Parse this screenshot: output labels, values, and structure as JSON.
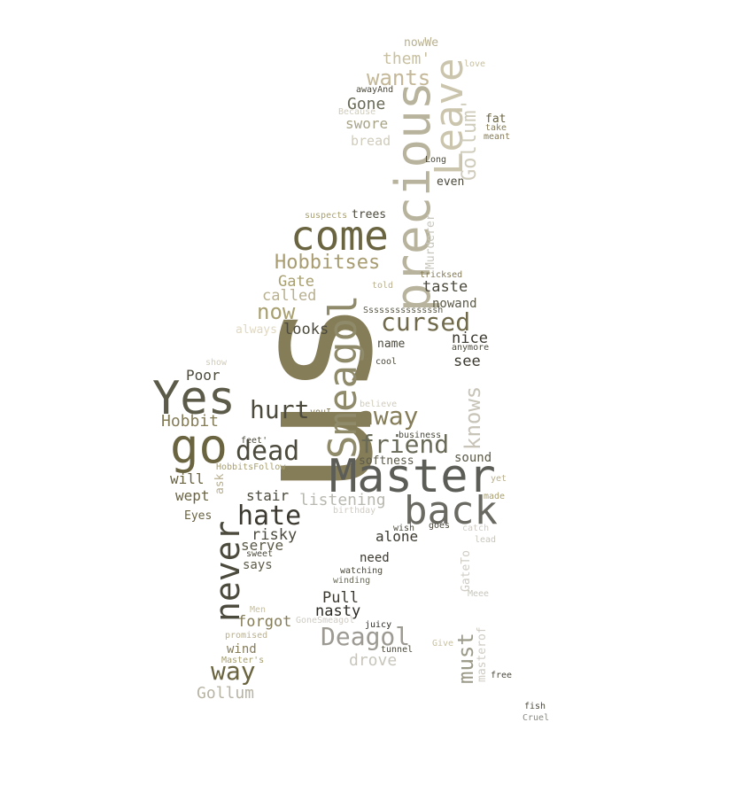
{
  "words": [
    {
      "text": "us",
      "color": "#857c58"
    },
    {
      "text": "precious",
      "color": "#b8b39c"
    },
    {
      "text": "Leave",
      "color": "#cbc5ad"
    },
    {
      "text": "Master",
      "color": "#5c5d57"
    },
    {
      "text": "Smeagol",
      "color": "#8f8a6a"
    },
    {
      "text": "back",
      "color": "#6a6a62"
    },
    {
      "text": "come",
      "color": "#6a6440"
    },
    {
      "text": "Yes",
      "color": "#5c5a48"
    },
    {
      "text": "go",
      "color": "#6a6440"
    },
    {
      "text": "never",
      "color": "#4c4a3c"
    },
    {
      "text": "Deagol",
      "color": "#9c9a92"
    },
    {
      "text": "Hobbitses",
      "color": "#a89c70"
    },
    {
      "text": "cursed",
      "color": "#706a4a"
    },
    {
      "text": "friend",
      "color": "#6a6a58"
    },
    {
      "text": "away",
      "color": "#857c58"
    },
    {
      "text": "dead",
      "color": "#4c4a3c"
    },
    {
      "text": "hate",
      "color": "#3c3a30"
    },
    {
      "text": "hurt",
      "color": "#4c4a3c"
    },
    {
      "text": "way",
      "color": "#6a6440"
    },
    {
      "text": "knows",
      "color": "#c8c4b8"
    },
    {
      "text": "must",
      "color": "#9c9a88"
    },
    {
      "text": "Gollum'",
      "color": "#d0ccbc"
    },
    {
      "text": "wants",
      "color": "#c4b898"
    },
    {
      "text": "now",
      "color": "#a8a070"
    },
    {
      "text": "Gollum",
      "color": "#b8b4a4"
    },
    {
      "text": "drove",
      "color": "#c8c6bc"
    },
    {
      "text": "listening",
      "color": "#b8b8b0"
    },
    {
      "text": "Hobbit",
      "color": "#857c58"
    },
    {
      "text": "them'",
      "color": "#c8c0a0"
    },
    {
      "text": "Gone",
      "color": "#6a6a58"
    },
    {
      "text": "swore",
      "color": "#a8a488"
    },
    {
      "text": "bread",
      "color": "#d0ccbc"
    },
    {
      "text": "Gate",
      "color": "#a8a070"
    },
    {
      "text": "called",
      "color": "#b8b090"
    },
    {
      "text": "taste",
      "color": "#4c4a3c"
    },
    {
      "text": "looks",
      "color": "#4c4a3c"
    },
    {
      "text": "nice",
      "color": "#3c3a30"
    },
    {
      "text": "see",
      "color": "#3c3a30"
    },
    {
      "text": "Poor",
      "color": "#4c4a3c"
    },
    {
      "text": "will",
      "color": "#6a6440"
    },
    {
      "text": "wept",
      "color": "#6a6440"
    },
    {
      "text": "stair",
      "color": "#4c4a3c"
    },
    {
      "text": "risky",
      "color": "#4c4a3c"
    },
    {
      "text": "serve",
      "color": "#5c5a48"
    },
    {
      "text": "alone",
      "color": "#3c3a30"
    },
    {
      "text": "sound",
      "color": "#5c5a48"
    },
    {
      "text": "softness",
      "color": "#5c5a48"
    },
    {
      "text": "nowand",
      "color": "#5c5a48"
    },
    {
      "text": "name",
      "color": "#4c4a3c"
    },
    {
      "text": "forgot",
      "color": "#857c58"
    },
    {
      "text": "nasty",
      "color": "#2c2a24"
    },
    {
      "text": "Pull",
      "color": "#3c3a30"
    },
    {
      "text": "wind",
      "color": "#857c58"
    },
    {
      "text": "need",
      "color": "#3c3a30"
    },
    {
      "text": "says",
      "color": "#5c5a48"
    },
    {
      "text": "Eyes",
      "color": "#6a6440"
    },
    {
      "text": "trees",
      "color": "#4c4a3c"
    },
    {
      "text": "even",
      "color": "#4c4a3c"
    },
    {
      "text": "fat",
      "color": "#6a6440"
    },
    {
      "text": "nowWe",
      "color": "#b8b090"
    },
    {
      "text": "Murderer",
      "color": "#c8c6bc"
    },
    {
      "text": "masterof",
      "color": "#d0ccc4"
    },
    {
      "text": "GateTo",
      "color": "#d0ccc4"
    },
    {
      "text": "ask",
      "color": "#b8b090"
    },
    {
      "text": "always",
      "color": "#e0d8c0"
    },
    {
      "text": "Ssssssssssssssh",
      "color": "#5c5a48"
    },
    {
      "text": "love",
      "color": "#c8c0a0"
    },
    {
      "text": "awayAnd",
      "color": "#4c4a3c"
    },
    {
      "text": "Because",
      "color": "#d0ccbc"
    },
    {
      "text": "take",
      "color": "#857c58"
    },
    {
      "text": "meant",
      "color": "#857c58"
    },
    {
      "text": "Long",
      "color": "#4c4a3c"
    },
    {
      "text": "suspects",
      "color": "#a8a070"
    },
    {
      "text": "tricksed",
      "color": "#857c58"
    },
    {
      "text": "told",
      "color": "#b8b090"
    },
    {
      "text": "anymore",
      "color": "#4c4a3c"
    },
    {
      "text": "cool",
      "color": "#4c4a3c"
    },
    {
      "text": "show",
      "color": "#d0ccbc"
    },
    {
      "text": "youI",
      "color": "#857c58"
    },
    {
      "text": "believe",
      "color": "#d0ccbc"
    },
    {
      "text": "business",
      "color": "#4c4a3c"
    },
    {
      "text": "feet'",
      "color": "#4c4a3c"
    },
    {
      "text": "HobbitsFollow",
      "color": "#a8a070"
    },
    {
      "text": "yet",
      "color": "#b8b090"
    },
    {
      "text": "made",
      "color": "#a8a070"
    },
    {
      "text": "birthday",
      "color": "#d0ccc4"
    },
    {
      "text": "wish",
      "color": "#4c4a3c"
    },
    {
      "text": "goes",
      "color": "#4c4a3c"
    },
    {
      "text": "catch",
      "color": "#d0ccc4"
    },
    {
      "text": "lead",
      "color": "#c8c6bc"
    },
    {
      "text": "sweet",
      "color": "#4c4a3c"
    },
    {
      "text": "watching",
      "color": "#4c4a3c"
    },
    {
      "text": "winding",
      "color": "#6a6a58"
    },
    {
      "text": "Meee",
      "color": "#c8c6bc"
    },
    {
      "text": "Men",
      "color": "#c8c0a0"
    },
    {
      "text": "GoneSmeagol",
      "color": "#d0ccc4"
    },
    {
      "text": "juicy",
      "color": "#2c2a24"
    },
    {
      "text": "promised",
      "color": "#b8b090"
    },
    {
      "text": "Give",
      "color": "#c8c0a0"
    },
    {
      "text": "tunnel",
      "color": "#4c4a3c"
    },
    {
      "text": "Master's",
      "color": "#a8a070"
    },
    {
      "text": "free",
      "color": "#4c4a3c"
    },
    {
      "text": "fish",
      "color": "#4c4a3c"
    },
    {
      "text": "Cruel",
      "color": "#8a8a84"
    }
  ]
}
